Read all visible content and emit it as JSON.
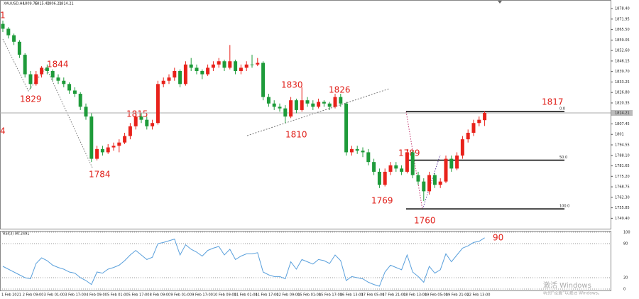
{
  "chart_data": [
    {
      "type": "candlestick",
      "symbol": "XAUUSD,H4",
      "up_color": "#e8221b",
      "down_color": "#1e9b3a",
      "candles": [
        [
          1869,
          1871,
          1864,
          1866
        ],
        [
          1866,
          1867,
          1860,
          1862
        ],
        [
          1862,
          1863,
          1856,
          1858
        ],
        [
          1858,
          1859,
          1848,
          1850
        ],
        [
          1850,
          1851,
          1836,
          1838
        ],
        [
          1838,
          1840,
          1829,
          1832
        ],
        [
          1832,
          1840,
          1831,
          1838
        ],
        [
          1838,
          1843,
          1836,
          1842
        ],
        [
          1842,
          1844,
          1838,
          1840
        ],
        [
          1840,
          1841,
          1834,
          1836
        ],
        [
          1836,
          1838,
          1832,
          1834
        ],
        [
          1834,
          1836,
          1830,
          1832
        ],
        [
          1832,
          1833,
          1826,
          1828
        ],
        [
          1828,
          1830,
          1824,
          1826
        ],
        [
          1826,
          1827,
          1816,
          1818
        ],
        [
          1818,
          1820,
          1810,
          1812
        ],
        [
          1812,
          1814,
          1784,
          1786
        ],
        [
          1786,
          1794,
          1785,
          1792
        ],
        [
          1792,
          1794,
          1788,
          1790
        ],
        [
          1790,
          1795,
          1789,
          1793
        ],
        [
          1793,
          1796,
          1791,
          1794
        ],
        [
          1794,
          1798,
          1790,
          1796
        ],
        [
          1796,
          1802,
          1795,
          1800
        ],
        [
          1800,
          1808,
          1798,
          1806
        ],
        [
          1806,
          1815,
          1804,
          1812
        ],
        [
          1812,
          1814,
          1808,
          1810
        ],
        [
          1810,
          1812,
          1804,
          1806
        ],
        [
          1806,
          1810,
          1804,
          1808
        ],
        [
          1808,
          1834,
          1807,
          1832
        ],
        [
          1832,
          1836,
          1830,
          1834
        ],
        [
          1834,
          1838,
          1832,
          1836
        ],
        [
          1836,
          1842,
          1834,
          1840
        ],
        [
          1840,
          1841,
          1830,
          1832
        ],
        [
          1832,
          1846,
          1831,
          1844
        ],
        [
          1844,
          1848,
          1840,
          1842
        ],
        [
          1842,
          1844,
          1838,
          1840
        ],
        [
          1840,
          1841,
          1835,
          1838
        ],
        [
          1838,
          1844,
          1837,
          1842
        ],
        [
          1842,
          1846,
          1840,
          1844
        ],
        [
          1844,
          1848,
          1842,
          1846
        ],
        [
          1846,
          1847,
          1840,
          1842
        ],
        [
          1842,
          1856,
          1841,
          1846
        ],
        [
          1846,
          1847,
          1838,
          1840
        ],
        [
          1840,
          1844,
          1838,
          1842
        ],
        [
          1842,
          1846,
          1840,
          1844
        ],
        [
          1844,
          1850,
          1842,
          1844
        ],
        [
          1844,
          1848,
          1843,
          1845
        ],
        [
          1845,
          1846,
          1822,
          1824
        ],
        [
          1824,
          1826,
          1818,
          1820
        ],
        [
          1820,
          1822,
          1816,
          1818
        ],
        [
          1818,
          1820,
          1815,
          1817
        ],
        [
          1817,
          1819,
          1808,
          1812
        ],
        [
          1812,
          1824,
          1811,
          1822
        ],
        [
          1822,
          1823,
          1814,
          1816
        ],
        [
          1816,
          1830,
          1815,
          1822
        ],
        [
          1822,
          1824,
          1818,
          1820
        ],
        [
          1820,
          1822,
          1816,
          1818
        ],
        [
          1818,
          1823,
          1817,
          1821
        ],
        [
          1821,
          1822,
          1818,
          1820
        ],
        [
          1820,
          1821,
          1816,
          1818
        ],
        [
          1818,
          1826,
          1817,
          1824
        ],
        [
          1824,
          1826,
          1818,
          1820
        ],
        [
          1820,
          1821,
          1788,
          1790
        ],
        [
          1790,
          1794,
          1788,
          1792
        ],
        [
          1792,
          1794,
          1789,
          1791
        ],
        [
          1791,
          1793,
          1787,
          1790
        ],
        [
          1790,
          1792,
          1782,
          1784
        ],
        [
          1784,
          1786,
          1776,
          1778
        ],
        [
          1778,
          1780,
          1768,
          1770
        ],
        [
          1770,
          1780,
          1769,
          1778
        ],
        [
          1778,
          1784,
          1776,
          1782
        ],
        [
          1782,
          1784,
          1778,
          1780
        ],
        [
          1780,
          1782,
          1776,
          1778
        ],
        [
          1778,
          1792,
          1777,
          1790
        ],
        [
          1790,
          1791,
          1774,
          1776
        ],
        [
          1776,
          1778,
          1770,
          1772
        ],
        [
          1772,
          1774,
          1760,
          1766
        ],
        [
          1766,
          1778,
          1764,
          1776
        ],
        [
          1776,
          1777,
          1768,
          1770
        ],
        [
          1770,
          1774,
          1768,
          1772
        ],
        [
          1772,
          1788,
          1771,
          1786
        ],
        [
          1786,
          1788,
          1778,
          1780
        ],
        [
          1780,
          1790,
          1779,
          1788
        ],
        [
          1788,
          1800,
          1786,
          1798
        ],
        [
          1798,
          1804,
          1796,
          1802
        ],
        [
          1802,
          1810,
          1800,
          1808
        ],
        [
          1808,
          1812,
          1806,
          1810
        ],
        [
          1809.76,
          1815.42,
          1806.21,
          1814.21
        ]
      ],
      "ylim": [
        1743,
        1881.5
      ],
      "yticks": [
        {
          "value": 1878.4,
          "label": "1878.40"
        },
        {
          "value": 1871.95,
          "label": "1871.95"
        },
        {
          "value": 1865.5,
          "label": "1865.50"
        },
        {
          "value": 1859.05,
          "label": "1859.05"
        },
        {
          "value": 1852.6,
          "label": "1852.60"
        },
        {
          "value": 1846.15,
          "label": "1846.15"
        },
        {
          "value": 1839.7,
          "label": "1839.70"
        },
        {
          "value": 1833.25,
          "label": "1833.25"
        },
        {
          "value": 1826.8,
          "label": "1826.80"
        },
        {
          "value": 1820.35,
          "label": "1820.35"
        },
        {
          "value": 1807.45,
          "label": "1807.45"
        },
        1801.0,
        {
          "value": 1794.55,
          "label": "1794.55"
        },
        {
          "value": 1788.1,
          "label": "1788.10"
        },
        {
          "value": 1781.65,
          "label": "1781.65"
        },
        {
          "value": 1775.2,
          "label": "1775.20"
        },
        {
          "value": 1768.75,
          "label": "1768.75"
        },
        {
          "value": 1762.3,
          "label": "1762.30"
        },
        {
          "value": 1755.85,
          "label": "1755.85"
        },
        {
          "value": 1749.4,
          "label": "1749.40"
        }
      ],
      "fib": [
        {
          "label": "0.0",
          "price": 1815.1
        },
        {
          "label": "50.0",
          "price": 1785.15
        },
        {
          "label": "100.0",
          "price": 1755.2
        }
      ],
      "annotations": [
        "1",
        "1829",
        "1844",
        "1784",
        "1815",
        "1830",
        "1810",
        "1826",
        "1789",
        "1769",
        "1760",
        "1817",
        "4"
      ],
      "time_labels": [
        "1 Feb 2021",
        "2 Feb 09:00",
        "3 Feb 01:00",
        "3 Feb 17:00",
        "4 Feb 09:00",
        "5 Feb 01:00",
        "5 Feb 17:00",
        "8 Feb 09:00",
        "9 Feb 01:00",
        "9 Feb 17:00",
        "10 Feb 09:00",
        "11 Feb 01:00",
        "11 Feb 17:00",
        "12 Feb 09:00",
        "15 Feb 01:00",
        "15 Feb 17:00",
        "16 Feb 13:00",
        "17 Feb 05:00",
        "17 Feb 21:00",
        "18 Feb 13:00",
        "19 Feb 05:00",
        "19 Feb 21:00",
        "22 Feb 13:00"
      ]
    },
    {
      "type": "line",
      "title": "RSI(3) 90.2491",
      "color": "#5aa0dc",
      "values": [
        40,
        35,
        30,
        25,
        20,
        18,
        45,
        55,
        50,
        42,
        38,
        35,
        30,
        28,
        20,
        15,
        8,
        30,
        28,
        35,
        38,
        42,
        50,
        60,
        68,
        60,
        52,
        56,
        80,
        82,
        85,
        88,
        60,
        78,
        70,
        65,
        58,
        68,
        72,
        75,
        60,
        70,
        52,
        58,
        62,
        62,
        64,
        30,
        25,
        22,
        22,
        18,
        48,
        35,
        52,
        48,
        44,
        52,
        50,
        45,
        60,
        50,
        15,
        22,
        20,
        18,
        12,
        8,
        5,
        30,
        42,
        38,
        34,
        60,
        30,
        22,
        12,
        40,
        28,
        34,
        62,
        48,
        60,
        72,
        76,
        82,
        84,
        90.2491
      ],
      "ylim": [
        0,
        100
      ],
      "yticks": [
        100,
        80,
        20,
        0
      ],
      "annotation": "90"
    }
  ],
  "watermark": [
    "激活 Windows",
    "转到“设置”以激活 Windows。"
  ]
}
